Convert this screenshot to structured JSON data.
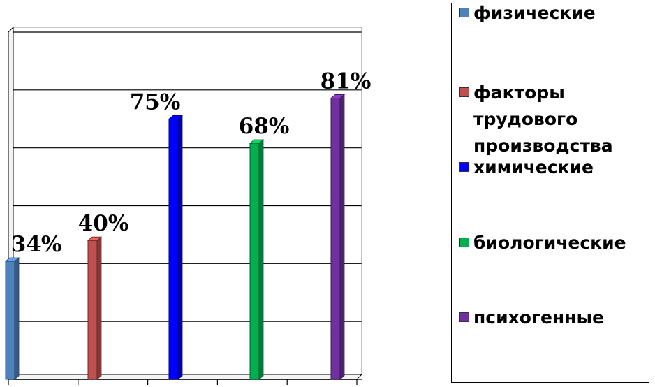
{
  "chart_data": {
    "type": "bar",
    "categories": [
      "физические",
      "факторы трудового производства",
      "химические",
      "биологические",
      "психогенные"
    ],
    "values": [
      34,
      40,
      75,
      68,
      81
    ],
    "data_labels": [
      "34%",
      "40%",
      "75%",
      "68%",
      "81%"
    ],
    "colors": [
      "#4F81BD",
      "#C0504D",
      "#0000FF",
      "#00B050",
      "#7030A0"
    ],
    "ylim": [
      0,
      100
    ],
    "grid": true,
    "legend_position": "right",
    "legend": [
      {
        "label": "физические",
        "color": "#4F81BD"
      },
      {
        "label": "факторы трудового производства",
        "color": "#C0504D"
      },
      {
        "label": "химические",
        "color": "#0000FF"
      },
      {
        "label": "биологические",
        "color": "#00B050"
      },
      {
        "label": "психогенные",
        "color": "#7030A0"
      }
    ]
  }
}
